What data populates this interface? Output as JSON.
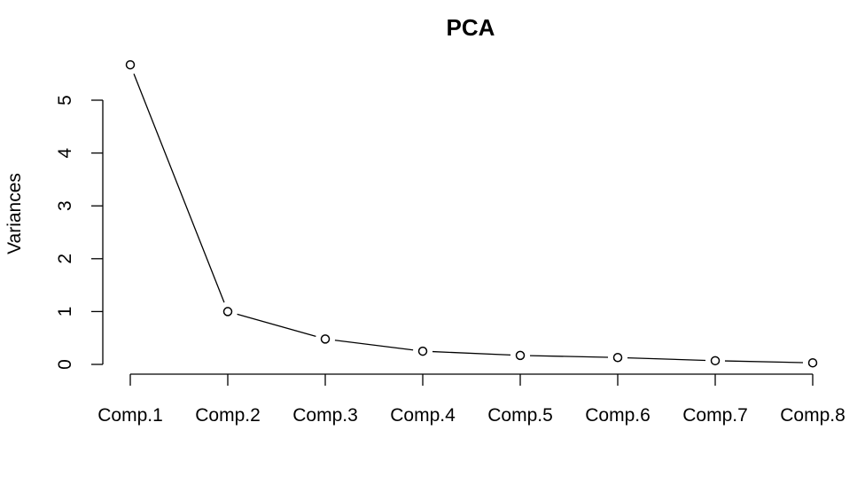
{
  "chart_data": {
    "type": "line",
    "title": "PCA",
    "xlabel": "",
    "ylabel": "Variances",
    "categories": [
      "Comp.1",
      "Comp.2",
      "Comp.3",
      "Comp.4",
      "Comp.5",
      "Comp.6",
      "Comp.7",
      "Comp.8"
    ],
    "values": [
      5.67,
      1.0,
      0.48,
      0.25,
      0.17,
      0.13,
      0.07,
      0.03
    ],
    "yticks": [
      "0",
      "1",
      "2",
      "3",
      "4",
      "5"
    ],
    "ylim": [
      0,
      5
    ],
    "grid": false,
    "legend": "none",
    "marker": "open-circle"
  }
}
